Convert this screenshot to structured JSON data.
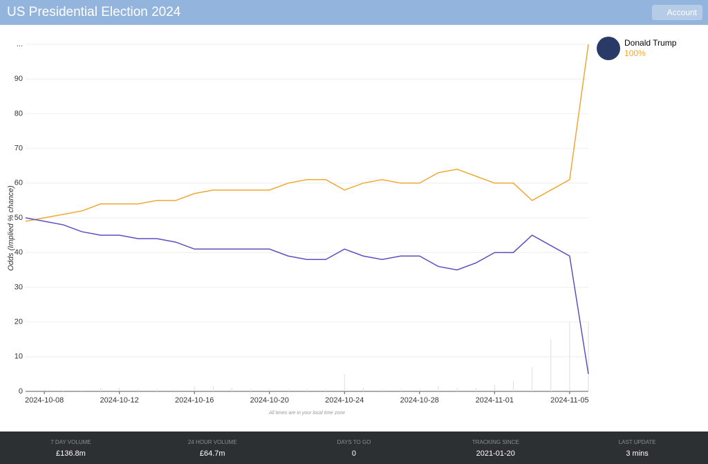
{
  "header": {
    "title": "US Presidential Election 2024",
    "button": "Account"
  },
  "chart_data": {
    "type": "line",
    "ylabel": "Odds (Implied % chance)",
    "note": "All times are in your local time zone",
    "x": [
      "2024-10-07",
      "2024-10-08",
      "2024-10-09",
      "2024-10-10",
      "2024-10-11",
      "2024-10-12",
      "2024-10-13",
      "2024-10-14",
      "2024-10-15",
      "2024-10-16",
      "2024-10-17",
      "2024-10-18",
      "2024-10-19",
      "2024-10-20",
      "2024-10-21",
      "2024-10-22",
      "2024-10-23",
      "2024-10-24",
      "2024-10-25",
      "2024-10-26",
      "2024-10-27",
      "2024-10-28",
      "2024-10-29",
      "2024-10-30",
      "2024-10-31",
      "2024-11-01",
      "2024-11-02",
      "2024-11-03",
      "2024-11-04",
      "2024-11-05",
      "2024-11-06"
    ],
    "series": [
      {
        "name": "Donald Trump",
        "color": "#f0a732",
        "values": [
          49,
          50,
          51,
          52,
          54,
          54,
          54,
          55,
          55,
          57,
          58,
          58,
          58,
          58,
          60,
          61,
          61,
          58,
          60,
          61,
          60,
          60,
          63,
          64,
          62,
          60,
          60,
          55,
          58,
          61,
          100
        ]
      },
      {
        "color": "#5b4fc0",
        "values": [
          50,
          49,
          48,
          46,
          45,
          45,
          44,
          44,
          43,
          41,
          41,
          41,
          41,
          41,
          39,
          38,
          38,
          41,
          39,
          38,
          39,
          39,
          36,
          35,
          37,
          40,
          40,
          45,
          42,
          39,
          5
        ]
      }
    ],
    "volume": {
      "color": "#dddddd",
      "values": [
        0,
        0.5,
        0.3,
        0.3,
        1,
        1,
        0.5,
        0.5,
        0.5,
        1.5,
        1.5,
        1,
        0.5,
        0.5,
        0.5,
        0.5,
        0.5,
        5,
        1,
        0.5,
        0.5,
        0.5,
        1.5,
        1,
        1,
        2,
        3,
        7,
        15,
        20,
        20
      ]
    },
    "legend": {
      "value": 100,
      "label": "100%"
    },
    "xlim": [
      "2024-10-07",
      "2024-11-06"
    ],
    "xticks": [
      "2024-10-08",
      "2024-10-12",
      "2024-10-16",
      "2024-10-20",
      "2024-10-24",
      "2024-10-28",
      "2024-11-01",
      "2024-11-05"
    ],
    "ylim": [
      0,
      100
    ],
    "yticks": [
      0,
      10,
      20,
      30,
      40,
      50,
      60,
      70,
      80,
      90,
      {
        "value": 100,
        "label": "..."
      }
    ],
    "grid": true
  },
  "footer": [
    {
      "label": "7 DAY VOLUME",
      "value": "£136.8m"
    },
    {
      "label": "24 HOUR VOLUME",
      "value": "£64.7m"
    },
    {
      "label": "DAYS TO GO",
      "value": "0"
    },
    {
      "label": "TRACKING SINCE",
      "value": "2021-01-20"
    },
    {
      "label": "LAST UPDATE",
      "value": "3 mins"
    }
  ]
}
